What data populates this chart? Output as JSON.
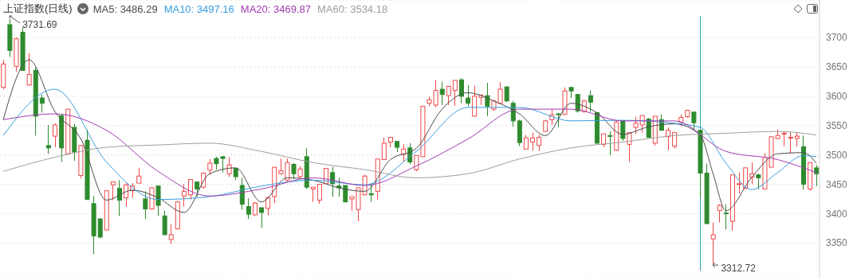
{
  "chart_data": {
    "type": "candlestick",
    "title": "上证指数(日线)",
    "categories": [
      null,
      null,
      null,
      null,
      null,
      null,
      null,
      null,
      null,
      null,
      null,
      null,
      null,
      null,
      null,
      null,
      null,
      null,
      null,
      null,
      null,
      null,
      null,
      null,
      null,
      null,
      null,
      null,
      null,
      null,
      null,
      null,
      null,
      null,
      null,
      null,
      null,
      null,
      null,
      null,
      null,
      null,
      null,
      null,
      null,
      null,
      null,
      null,
      null,
      null,
      null,
      null,
      null,
      null,
      null,
      null,
      null,
      null,
      null,
      null,
      null,
      null,
      null,
      null,
      null,
      null,
      null,
      null,
      null,
      null,
      null,
      null,
      null,
      null,
      null,
      null,
      null,
      null,
      null,
      null,
      null,
      null,
      null,
      null,
      null,
      null,
      null,
      null,
      null,
      null,
      null,
      null,
      null,
      null,
      null,
      null,
      null,
      null,
      null,
      null,
      null,
      null,
      null,
      null,
      null,
      null,
      null,
      null,
      null,
      null,
      null,
      null,
      null,
      null,
      null,
      null,
      null,
      null,
      null,
      null,
      null,
      null,
      null,
      null,
      null,
      null,
      null
    ],
    "ohlc": [
      [
        3615,
        3662,
        3612,
        3655
      ],
      [
        3722,
        3731.69,
        3667,
        3678
      ],
      [
        3651,
        3700,
        3642,
        3698
      ],
      [
        3709,
        3718,
        3644,
        3644
      ],
      [
        3619,
        3673,
        3619,
        3637
      ],
      [
        3644,
        3649,
        3533,
        3566
      ],
      [
        3597,
        3603,
        3572,
        3588
      ],
      [
        3516,
        3551,
        3502,
        3512
      ],
      [
        3532,
        3554,
        3513,
        3551
      ],
      [
        3567,
        3569,
        3488,
        3512
      ],
      [
        3502,
        3578,
        3502,
        3578
      ],
      [
        3547,
        3553,
        3490,
        3505
      ],
      [
        3465,
        3516,
        3460,
        3516
      ],
      [
        3525,
        3543,
        3424,
        3424
      ],
      [
        3417,
        3430,
        3331,
        3362
      ],
      [
        3391,
        3392,
        3358,
        3360
      ],
      [
        3372,
        3439,
        3372,
        3439
      ],
      [
        3449,
        3454,
        3423,
        3454
      ],
      [
        3443,
        3457,
        3396,
        3423
      ],
      [
        3427,
        3452,
        3412,
        3449
      ],
      [
        3439,
        3452,
        3427,
        3447
      ],
      [
        3452,
        3478,
        3452,
        3464
      ],
      [
        3425,
        3438,
        3391,
        3408
      ],
      [
        3408,
        3444,
        3407,
        3444
      ],
      [
        3447,
        3447,
        3396,
        3414
      ],
      [
        3396,
        3405,
        3364,
        3364
      ],
      [
        3356,
        3382,
        3348,
        3364
      ],
      [
        3374,
        3420,
        3374,
        3420
      ],
      [
        3430,
        3450,
        3412,
        3438
      ],
      [
        3432,
        3458,
        3424,
        3458
      ],
      [
        3454,
        3454,
        3429,
        3442
      ],
      [
        3445,
        3469,
        3443,
        3469
      ],
      [
        3474,
        3493,
        3466,
        3486
      ],
      [
        3494,
        3497,
        3475,
        3485
      ],
      [
        3497,
        3497,
        3470,
        3494
      ],
      [
        3468,
        3496,
        3463,
        3483
      ],
      [
        3477,
        3478,
        3457,
        3463
      ],
      [
        3448,
        3461,
        3407,
        3416
      ],
      [
        3412,
        3426,
        3391,
        3399
      ],
      [
        3398,
        3420,
        3396,
        3418
      ],
      [
        3410,
        3410,
        3376,
        3402
      ],
      [
        3409,
        3429,
        3397,
        3427
      ],
      [
        3429,
        3479,
        3418,
        3479
      ],
      [
        3468,
        3494,
        3466,
        3473
      ],
      [
        3457,
        3494,
        3454,
        3487
      ],
      [
        3484,
        3486,
        3459,
        3468
      ],
      [
        3463,
        3481,
        3460,
        3476
      ],
      [
        3497,
        3512,
        3442,
        3445
      ],
      [
        3442,
        3445,
        3420,
        3445
      ],
      [
        3423,
        3450,
        3417,
        3450
      ],
      [
        3451,
        3477,
        3451,
        3477
      ],
      [
        3470,
        3480,
        3429,
        3451
      ],
      [
        3447,
        3461,
        3429,
        3444
      ],
      [
        3448,
        3448,
        3419,
        3420
      ],
      [
        3425,
        3429,
        3405,
        3429
      ],
      [
        3407,
        3444,
        3387,
        3444
      ],
      [
        3432,
        3466,
        3432,
        3464
      ],
      [
        3434,
        3452,
        3420,
        3432
      ],
      [
        3438,
        3493,
        3424,
        3493
      ],
      [
        3492,
        3530,
        3492,
        3520
      ],
      [
        3522,
        3530,
        3513,
        3530
      ],
      [
        3523,
        3523,
        3505,
        3513
      ],
      [
        3501,
        3518,
        3488,
        3510
      ],
      [
        3512,
        3520,
        3484,
        3488
      ],
      [
        3475,
        3499,
        3472,
        3499
      ],
      [
        3497,
        3583,
        3497,
        3583
      ],
      [
        3588,
        3599,
        3583,
        3594
      ],
      [
        3585,
        3628,
        3581,
        3610
      ],
      [
        3612,
        3625,
        3585,
        3603
      ],
      [
        3601,
        3617,
        3585,
        3617
      ],
      [
        3610,
        3627,
        3584,
        3627
      ],
      [
        3628,
        3631,
        3588,
        3600
      ],
      [
        3597,
        3619,
        3583,
        3588
      ],
      [
        3566,
        3618,
        3565,
        3600
      ],
      [
        3598,
        3603,
        3585,
        3602
      ],
      [
        3601,
        3623,
        3566,
        3583
      ],
      [
        3578,
        3594,
        3575,
        3592
      ],
      [
        3588,
        3624,
        3588,
        3612
      ],
      [
        3616,
        3616,
        3590,
        3592
      ],
      [
        3588,
        3592,
        3548,
        3558
      ],
      [
        3558,
        3560,
        3515,
        3521
      ],
      [
        3510,
        3534,
        3510,
        3529
      ],
      [
        3522,
        3538,
        3507,
        3529
      ],
      [
        3516,
        3534,
        3507,
        3530
      ],
      [
        3540,
        3560,
        3540,
        3558
      ],
      [
        3560,
        3577,
        3551,
        3568
      ],
      [
        3570,
        3572,
        3547,
        3569
      ],
      [
        3569,
        3615,
        3569,
        3609
      ],
      [
        3615,
        3616,
        3597,
        3609
      ],
      [
        3603,
        3603,
        3572,
        3575
      ],
      [
        3574,
        3594,
        3572,
        3592
      ],
      [
        3601,
        3610,
        3574,
        3590
      ],
      [
        3572,
        3572,
        3518,
        3520
      ],
      [
        3518,
        3536,
        3513,
        3536
      ],
      [
        3533,
        3540,
        3499,
        3532
      ],
      [
        3508,
        3558,
        3507,
        3556
      ],
      [
        3558,
        3558,
        3524,
        3528
      ],
      [
        3518,
        3538,
        3488,
        3538
      ],
      [
        3547,
        3565,
        3536,
        3554
      ],
      [
        3551,
        3567,
        3538,
        3567
      ],
      [
        3561,
        3563,
        3529,
        3530
      ],
      [
        3520,
        3566,
        3516,
        3566
      ],
      [
        3560,
        3569,
        3541,
        3542
      ],
      [
        3531,
        3547,
        3508,
        3542
      ],
      [
        3515,
        3538,
        3511,
        3538
      ],
      [
        3556,
        3569,
        3549,
        3564
      ],
      [
        3565,
        3576,
        3563,
        3576
      ],
      [
        3573,
        3573,
        3542,
        3555
      ],
      [
        3542,
        3542,
        3427,
        3469
      ],
      [
        3469,
        3485,
        3382,
        3383
      ],
      [
        3357,
        3385,
        3312.72,
        3364
      ],
      [
        3405,
        3416,
        3385,
        3414
      ],
      [
        3401,
        3416,
        3373,
        3400
      ],
      [
        3387,
        3466,
        3371,
        3466
      ],
      [
        3450,
        3470,
        3434,
        3451
      ],
      [
        3443,
        3478,
        3442,
        3478
      ],
      [
        3462,
        3487,
        3450,
        3468
      ],
      [
        3466,
        3468,
        3441,
        3461
      ],
      [
        3442,
        3503,
        3442,
        3496
      ],
      [
        3479,
        3531,
        3479,
        3531
      ],
      [
        3528,
        3543,
        3527,
        3533
      ],
      [
        3536,
        3539,
        3515,
        3537
      ],
      [
        3529,
        3539,
        3502,
        3530
      ],
      [
        3528,
        3539,
        3514,
        3532
      ],
      [
        3514,
        3533,
        3441,
        3450
      ],
      [
        3442,
        3487,
        3439,
        3487
      ],
      [
        3478,
        3483,
        3447,
        3468
      ]
    ],
    "series": [
      {
        "type": "line",
        "name": "MA5: 3486.29",
        "color": "#4a4a4a",
        "values": [
          3560,
          null,
          null,
          null,
          3662,
          null,
          null,
          null,
          3574,
          null,
          null,
          null,
          3528,
          null,
          null,
          null,
          3423,
          null,
          null,
          null,
          3440,
          null,
          null,
          null,
          3427,
          null,
          null,
          null,
          3402,
          null,
          null,
          null,
          3468,
          null,
          null,
          null,
          3478,
          null,
          null,
          null,
          3420,
          null,
          null,
          null,
          3461,
          null,
          null,
          null,
          3457,
          null,
          null,
          null,
          3444,
          null,
          null,
          null,
          3438,
          null,
          null,
          null,
          3492,
          null,
          null,
          null,
          3511,
          null,
          null,
          null,
          3578,
          null,
          null,
          null,
          3606,
          null,
          null,
          null,
          3592,
          null,
          null,
          null,
          3570,
          null,
          null,
          null,
          3533,
          null,
          null,
          null,
          3588,
          null,
          null,
          null,
          3572,
          null,
          null,
          null,
          3535,
          null,
          null,
          null,
          3548,
          null,
          null,
          null,
          3553,
          null,
          null,
          null,
          3534,
          null,
          3468,
          null,
          3405,
          null,
          null,
          null,
          3462,
          null,
          null,
          null,
          3502,
          null,
          null,
          null,
          3504,
          null,
          3486
        ]
      },
      {
        "type": "line",
        "name": "MA10: 3497.16",
        "color": "#3a9ee0",
        "values": [
          3533,
          null,
          null,
          null,
          null,
          null,
          null,
          null,
          3612,
          null,
          null,
          null,
          null,
          null,
          null,
          null,
          3488,
          null,
          null,
          null,
          null,
          null,
          null,
          null,
          3424,
          null,
          null,
          null,
          null,
          null,
          null,
          null,
          3429,
          null,
          null,
          null,
          null,
          null,
          null,
          null,
          3447,
          null,
          null,
          null,
          null,
          null,
          null,
          null,
          3457,
          null,
          null,
          null,
          null,
          null,
          null,
          null,
          3449,
          null,
          null,
          null,
          null,
          null,
          null,
          null,
          3506,
          null,
          null,
          null,
          null,
          null,
          null,
          null,
          3581,
          null,
          null,
          null,
          null,
          null,
          null,
          null,
          3581,
          null,
          null,
          null,
          null,
          null,
          null,
          null,
          3558,
          null,
          null,
          null,
          null,
          null,
          null,
          null,
          3559,
          null,
          null,
          null,
          null,
          null,
          null,
          null,
          3554,
          null,
          null,
          null,
          3547,
          null,
          null,
          null,
          3486,
          null,
          null,
          null,
          3441,
          null,
          null,
          null,
          3470,
          null,
          null,
          null,
          3499,
          null,
          3497
        ]
      },
      {
        "type": "line",
        "name": "MA20: 3469.87",
        "color": "#a03cb0",
        "values": [
          3560,
          null,
          null,
          null,
          null,
          null,
          null,
          null,
          3570,
          null,
          null,
          null,
          null,
          null,
          null,
          null,
          3542,
          null,
          null,
          null,
          null,
          null,
          null,
          null,
          3472,
          null,
          null,
          null,
          null,
          null,
          null,
          null,
          3430,
          null,
          null,
          null,
          null,
          null,
          null,
          null,
          3442,
          null,
          null,
          null,
          null,
          null,
          null,
          null,
          3461,
          null,
          null,
          null,
          null,
          null,
          null,
          null,
          3448,
          null,
          null,
          null,
          null,
          null,
          null,
          null,
          3481,
          null,
          null,
          null,
          null,
          null,
          null,
          null,
          3527,
          null,
          null,
          null,
          null,
          null,
          null,
          null,
          3578,
          null,
          null,
          null,
          null,
          null,
          null,
          null,
          3578,
          null,
          null,
          null,
          null,
          null,
          null,
          null,
          3558,
          null,
          null,
          null,
          null,
          null,
          null,
          null,
          3558,
          null,
          null,
          null,
          null,
          null,
          null,
          null,
          3506,
          null,
          null,
          null,
          null,
          null,
          null,
          null,
          3492,
          null,
          null,
          null,
          null,
          null,
          3470
        ]
      },
      {
        "type": "line",
        "name": "MA60: 3534.18",
        "color": "#9e9e9e",
        "values": [
          3472,
          null,
          null,
          null,
          null,
          null,
          null,
          null,
          3496,
          null,
          null,
          null,
          null,
          null,
          null,
          null,
          3513,
          null,
          null,
          null,
          null,
          null,
          null,
          null,
          3517,
          null,
          null,
          null,
          null,
          null,
          null,
          null,
          3520,
          null,
          null,
          null,
          null,
          null,
          null,
          null,
          3506,
          null,
          null,
          null,
          null,
          null,
          null,
          null,
          3487,
          null,
          null,
          null,
          null,
          null,
          null,
          null,
          3475,
          null,
          null,
          null,
          null,
          null,
          null,
          null,
          3461,
          null,
          null,
          null,
          null,
          null,
          null,
          null,
          3468,
          null,
          null,
          null,
          null,
          null,
          null,
          null,
          3493,
          null,
          null,
          null,
          null,
          null,
          null,
          null,
          3512,
          null,
          null,
          null,
          null,
          null,
          null,
          null,
          3522,
          null,
          null,
          null,
          null,
          null,
          null,
          null,
          3533,
          null,
          null,
          null,
          null,
          null,
          null,
          null,
          3537,
          null,
          null,
          null,
          null,
          null,
          null,
          null,
          3540,
          null,
          null,
          null,
          null,
          null,
          3534
        ]
      }
    ],
    "annotations": [
      "3731.69",
      "3312.72"
    ],
    "ylim": [
      3292,
      3764
    ],
    "yticks": [
      3350,
      3400,
      3450,
      3500,
      3550,
      3600,
      3650,
      3700
    ],
    "grid": "y",
    "legend": "top left",
    "tick_labels": "y"
  }
}
